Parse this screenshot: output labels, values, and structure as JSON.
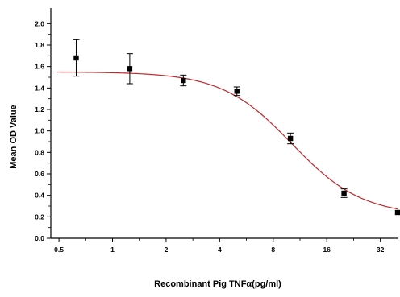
{
  "chart_data": {
    "type": "scatter",
    "title": "",
    "xlabel": "Recombinant Pig TNFα(pg/ml)",
    "ylabel": "Mean OD Value",
    "x_scale": "log2",
    "xlim": [
      0.45,
      40
    ],
    "ylim": [
      0.0,
      2.1
    ],
    "x_ticks": [
      0.5,
      1,
      2,
      4,
      8,
      16,
      32
    ],
    "x_tick_labels": [
      "0.5",
      "1",
      "2",
      "4",
      "8",
      "16",
      "32"
    ],
    "y_ticks": [
      0.0,
      0.2,
      0.4,
      0.6,
      0.8,
      1.0,
      1.2,
      1.4,
      1.6,
      1.8,
      2.0
    ],
    "y_tick_labels": [
      "0.0",
      "0.2",
      "0.4",
      "0.6",
      "0.8",
      "1.0",
      "1.2",
      "1.4",
      "1.6",
      "1.8",
      "2.0"
    ],
    "grid": false,
    "legend": "none",
    "points": [
      {
        "x": 0.625,
        "y": 1.68,
        "err": 0.17
      },
      {
        "x": 1.25,
        "y": 1.58,
        "err": 0.14
      },
      {
        "x": 2.5,
        "y": 1.47,
        "err": 0.05
      },
      {
        "x": 5,
        "y": 1.37,
        "err": 0.04
      },
      {
        "x": 10,
        "y": 0.93,
        "err": 0.05
      },
      {
        "x": 20,
        "y": 0.42,
        "err": 0.04
      },
      {
        "x": 40,
        "y": 0.24,
        "err": 0.01
      }
    ],
    "fit": {
      "type": "logistic",
      "top": 1.55,
      "bottom": 0.21,
      "x0": 10.2,
      "slope": 2.2
    },
    "marker_color": "#000000",
    "curve_color": "#c0282d",
    "axis_color": "#000000"
  }
}
